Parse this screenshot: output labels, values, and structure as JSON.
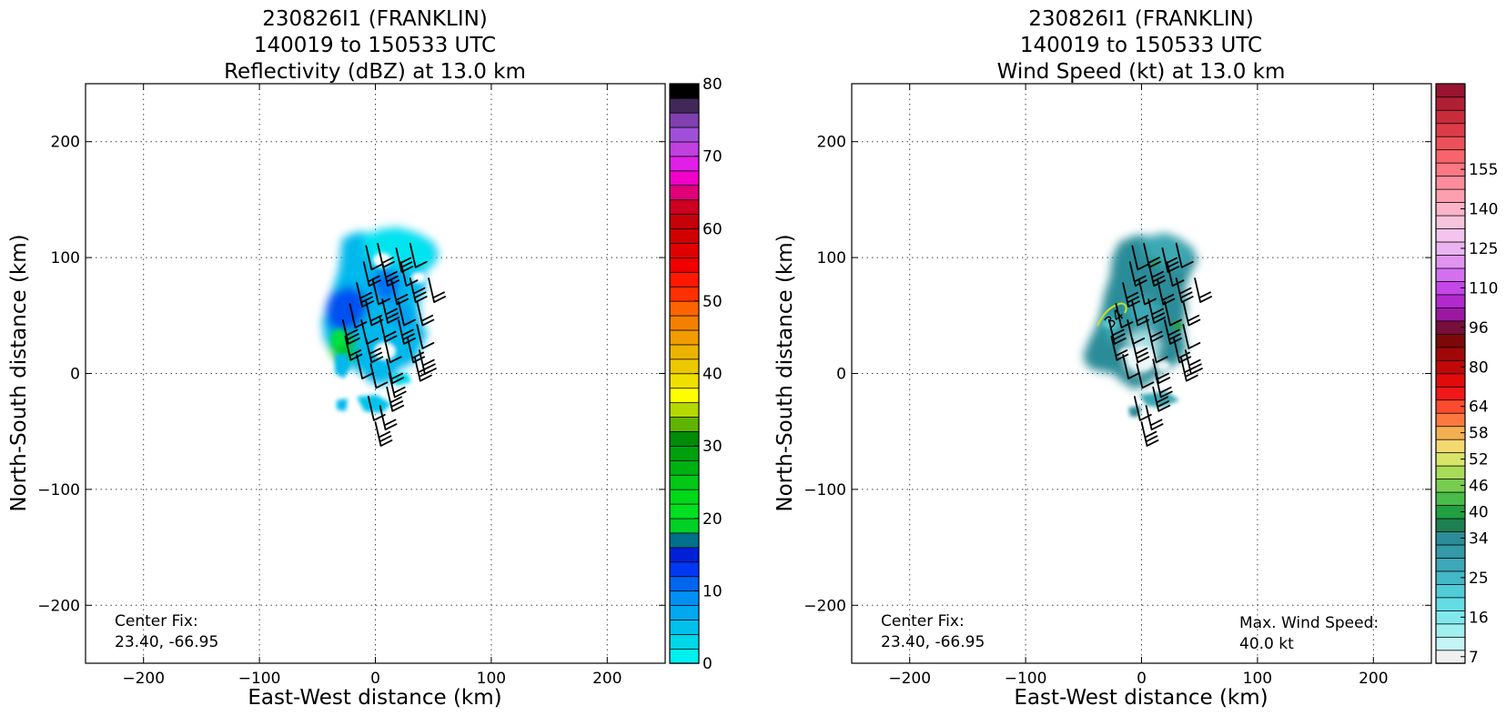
{
  "chart_data": [
    {
      "type": "heatmap",
      "title_lines": [
        "230826I1 (FRANKLIN)",
        "140019 to 150533 UTC",
        "Reflectivity (dBZ) at 13.0 km"
      ],
      "xlabel": "East-West distance (km)",
      "ylabel": "North-South distance (km)",
      "xlim": [
        -250,
        250
      ],
      "ylim": [
        -250,
        250
      ],
      "xticks": [
        -200,
        -100,
        0,
        100,
        200
      ],
      "yticks": [
        -200,
        -100,
        0,
        100,
        200
      ],
      "xtick_labels": [
        "−200",
        "−100",
        "0",
        "100",
        "200"
      ],
      "ytick_labels": [
        "−200",
        "−100",
        "0",
        "100",
        "200"
      ],
      "grid": true,
      "annotation_lines": [
        "Center Fix:",
        "23.40, -66.95"
      ],
      "colorbar": {
        "min": 0,
        "max": 80,
        "tick_values": [
          0,
          10,
          20,
          30,
          40,
          50,
          60,
          70,
          80
        ],
        "tick_labels": [
          "0",
          "10",
          "20",
          "30",
          "40",
          "50",
          "60",
          "70",
          "80"
        ],
        "colors": [
          "#00f0f0",
          "#00d8e8",
          "#00c0ec",
          "#00a8f0",
          "#0090f4",
          "#0066f0",
          "#0038f4",
          "#0020d8",
          "#00708c",
          "#00d028",
          "#00e020",
          "#00d818",
          "#00c814",
          "#00b010",
          "#00a00c",
          "#008c08",
          "#60b400",
          "#b4d800",
          "#ffff00",
          "#f0e000",
          "#ecc800",
          "#ecb400",
          "#f09c00",
          "#f48000",
          "#ff6400",
          "#ff3000",
          "#ff1800",
          "#f00000",
          "#e00000",
          "#d00000",
          "#c40008",
          "#cc0020",
          "#e00078",
          "#f000c8",
          "#e020e8",
          "#c040e0",
          "#a050d8",
          "#8040b0",
          "#402858",
          "#000000"
        ]
      },
      "field_color_scheme": [
        "#00e8f0",
        "#00b8ec",
        "#0080f4",
        "#0044f0",
        "#00c020"
      ]
    },
    {
      "type": "heatmap",
      "title_lines": [
        "230826I1 (FRANKLIN)",
        "140019 to 150533 UTC",
        "Wind Speed (kt) at 13.0 km"
      ],
      "xlabel": "East-West distance (km)",
      "ylabel": "North-South distance (km)",
      "xlim": [
        -250,
        250
      ],
      "ylim": [
        -250,
        250
      ],
      "xticks": [
        -200,
        -100,
        0,
        100,
        200
      ],
      "yticks": [
        -200,
        -100,
        0,
        100,
        200
      ],
      "xtick_labels": [
        "−200",
        "−100",
        "0",
        "100",
        "200"
      ],
      "ytick_labels": [
        "−200",
        "−100",
        "0",
        "100",
        "200"
      ],
      "grid": true,
      "annotation_lines": [
        "Center Fix:",
        "23.40, -66.95"
      ],
      "max_wind_lines": [
        "Max. Wind Speed:",
        "40.0 kt"
      ],
      "contour_label": "34",
      "colorbar": {
        "tick_labels": [
          "7",
          "16",
          "25",
          "34",
          "40",
          "46",
          "52",
          "58",
          "64",
          "80",
          "96",
          "110",
          "125",
          "140",
          "155"
        ],
        "tick_segments": [
          0,
          3,
          6,
          9,
          11,
          13,
          15,
          17,
          19,
          22,
          25,
          28,
          31,
          34,
          37
        ],
        "colors": [
          "#f0f0f0",
          "#c4f4f4",
          "#a0f0f0",
          "#80e8ec",
          "#64dce4",
          "#50ccd8",
          "#44b8c8",
          "#3ca8b8",
          "#349aa8",
          "#2c8c98",
          "#1c8050",
          "#20a040",
          "#48bc48",
          "#78cc50",
          "#a8dc58",
          "#d8e468",
          "#f4d870",
          "#f4b050",
          "#fc7840",
          "#fc4c30",
          "#f01818",
          "#e00c0c",
          "#c00808",
          "#a00808",
          "#7c0808",
          "#780e3c",
          "#9c18a0",
          "#b428d0",
          "#c448e8",
          "#d470f0",
          "#e094f0",
          "#eab4f0",
          "#f4c4ec",
          "#f8c4dc",
          "#fcb4c8",
          "#fca0b0",
          "#fc8c9c",
          "#fc7884",
          "#f8646c",
          "#ec5058",
          "#dc3c48",
          "#c82c3c",
          "#b02034",
          "#981430"
        ]
      },
      "field_color_scheme": [
        "#2a8c98",
        "#3aa8b4",
        "#60ccd4",
        "#e8f4f4",
        "#28a048"
      ]
    }
  ]
}
